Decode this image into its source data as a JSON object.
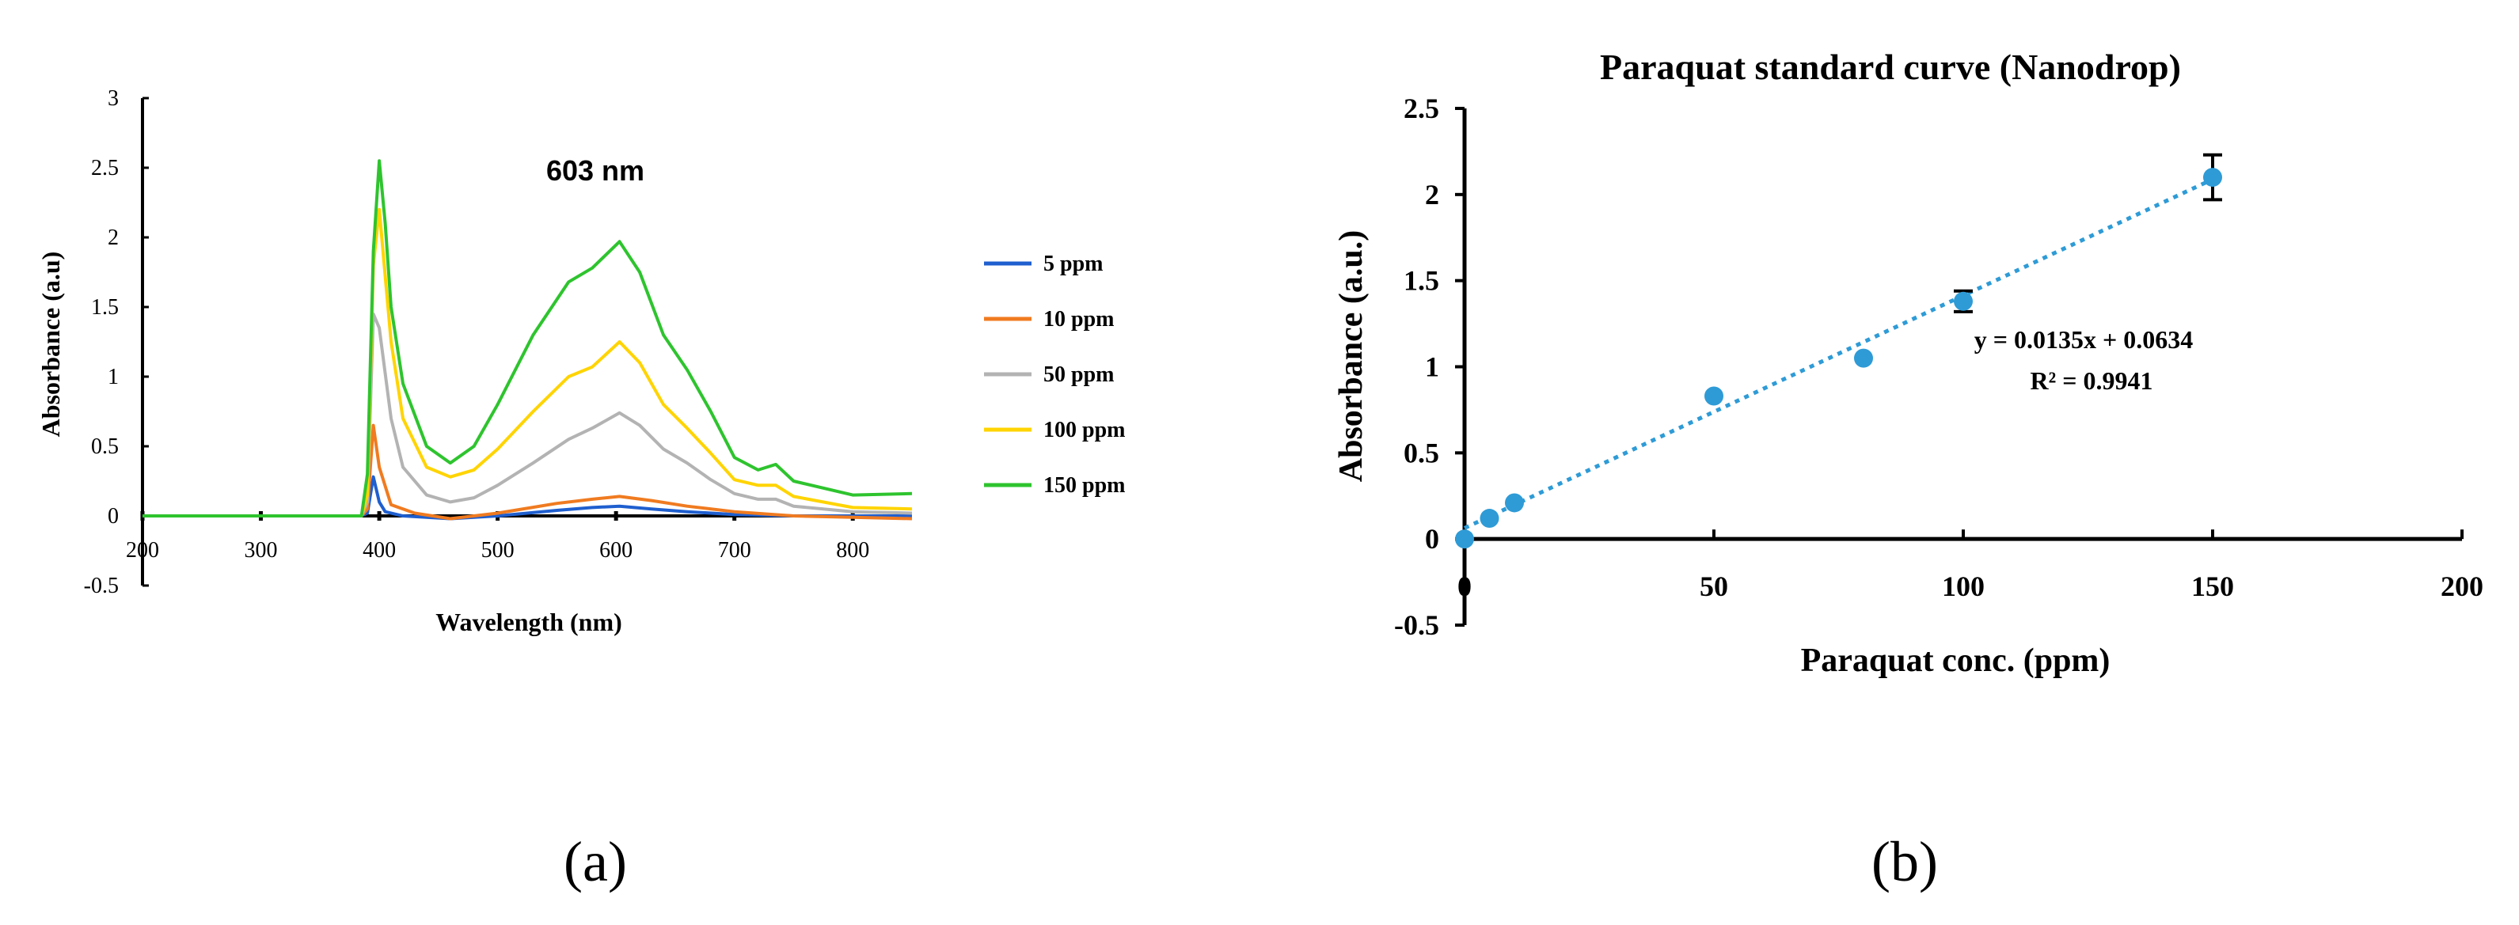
{
  "panel_labels": {
    "a": "(a)",
    "b": "(b)"
  },
  "chart_data": [
    {
      "type": "line",
      "id": "a",
      "title": "",
      "annotation": "603 nm",
      "xlabel": "Wavelength (nm)",
      "ylabel": "Absorbance  (a.u)",
      "xlim": [
        200,
        850
      ],
      "ylim": [
        -0.5,
        3
      ],
      "xticks": [
        200,
        300,
        400,
        500,
        600,
        700,
        800
      ],
      "yticks": [
        -0.5,
        0,
        0.5,
        1,
        1.5,
        2,
        2.5,
        3
      ],
      "ytick_labels": [
        "-0.5",
        "0",
        "0.5",
        "1",
        "1.5",
        "2",
        "2.5",
        "3"
      ],
      "legend_position": "right",
      "series": [
        {
          "name": "5 ppm",
          "color": "#1f5fcf",
          "x": [
            200,
            385,
            390,
            395,
            400,
            405,
            420,
            460,
            500,
            550,
            580,
            603,
            630,
            660,
            700,
            750,
            800,
            850
          ],
          "y": [
            0,
            0,
            0.02,
            0.28,
            0.1,
            0.03,
            0.0,
            -0.02,
            0.0,
            0.04,
            0.06,
            0.07,
            0.05,
            0.03,
            0.01,
            0.0,
            0.0,
            0.0
          ]
        },
        {
          "name": "10 ppm",
          "color": "#f07b20",
          "x": [
            200,
            385,
            390,
            395,
            400,
            410,
            430,
            460,
            500,
            550,
            580,
            603,
            630,
            660,
            700,
            750,
            800,
            850
          ],
          "y": [
            0,
            0,
            0.05,
            0.65,
            0.35,
            0.08,
            0.02,
            -0.02,
            0.02,
            0.09,
            0.12,
            0.14,
            0.11,
            0.07,
            0.03,
            0.0,
            -0.01,
            -0.02
          ]
        },
        {
          "name": "50 ppm",
          "color": "#b3b3b3",
          "x": [
            200,
            385,
            390,
            395,
            400,
            410,
            420,
            440,
            460,
            480,
            500,
            530,
            560,
            580,
            603,
            620,
            640,
            660,
            680,
            700,
            720,
            735,
            750,
            800,
            850
          ],
          "y": [
            0,
            0,
            0.1,
            1.45,
            1.35,
            0.7,
            0.35,
            0.15,
            0.1,
            0.13,
            0.22,
            0.38,
            0.55,
            0.63,
            0.74,
            0.65,
            0.48,
            0.38,
            0.26,
            0.16,
            0.12,
            0.12,
            0.07,
            0.03,
            0.02
          ]
        },
        {
          "name": "100 ppm",
          "color": "#ffd400",
          "x": [
            200,
            385,
            390,
            395,
            400,
            410,
            420,
            440,
            460,
            480,
            500,
            530,
            560,
            580,
            603,
            620,
            640,
            660,
            680,
            700,
            720,
            735,
            750,
            800,
            850
          ],
          "y": [
            0,
            0,
            0.15,
            1.8,
            2.2,
            1.25,
            0.7,
            0.35,
            0.28,
            0.33,
            0.48,
            0.75,
            1.0,
            1.07,
            1.25,
            1.1,
            0.8,
            0.63,
            0.45,
            0.26,
            0.22,
            0.22,
            0.14,
            0.06,
            0.05
          ]
        },
        {
          "name": "150 ppm",
          "color": "#2ec42e",
          "x": [
            200,
            385,
            390,
            395,
            400,
            405,
            410,
            420,
            440,
            460,
            480,
            500,
            530,
            560,
            580,
            603,
            620,
            640,
            660,
            680,
            700,
            720,
            735,
            750,
            800,
            850
          ],
          "y": [
            0,
            0,
            0.3,
            1.9,
            2.55,
            2.1,
            1.5,
            0.95,
            0.5,
            0.38,
            0.5,
            0.8,
            1.3,
            1.68,
            1.78,
            1.97,
            1.75,
            1.3,
            1.05,
            0.75,
            0.42,
            0.33,
            0.37,
            0.25,
            0.15,
            0.16
          ]
        }
      ]
    },
    {
      "type": "scatter",
      "id": "b",
      "title": "Paraquat standard curve (Nanodrop)",
      "xlabel": "Paraquat conc. (ppm)",
      "ylabel": "Absorbance (a.u.)",
      "xlim": [
        0,
        200
      ],
      "ylim": [
        -0.5,
        2.5
      ],
      "xticks": [
        50,
        100,
        150,
        200
      ],
      "yticks": [
        -0.5,
        0,
        0.5,
        1,
        1.5,
        2,
        2.5
      ],
      "ytick_labels": [
        "-0.5",
        "0",
        "0.5",
        "1",
        "1.5",
        "2",
        "2.5"
      ],
      "x_origin_label": "0",
      "points_color": "#2e9bd6",
      "x": [
        0,
        5,
        10,
        50,
        80,
        100,
        150
      ],
      "y": [
        0,
        0.12,
        0.21,
        0.83,
        1.05,
        1.38,
        2.1
      ],
      "error_bars": [
        {
          "x": 100,
          "y": 1.38,
          "err": 0.06
        },
        {
          "x": 150,
          "y": 2.1,
          "err": 0.13
        }
      ],
      "trendline": {
        "slope": 0.0135,
        "intercept": 0.0634,
        "x_range": [
          0,
          150
        ]
      },
      "equation": "y = 0.0135x + 0.0634",
      "r_squared": "R² = 0.9941"
    }
  ]
}
